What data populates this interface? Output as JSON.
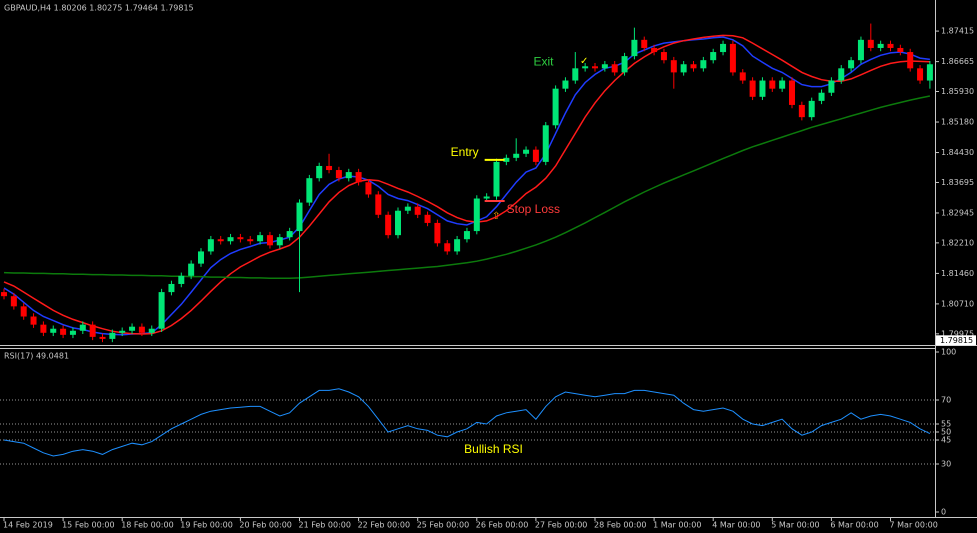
{
  "chart_data": [
    {
      "type": "candlestick",
      "title": "GBPAUD,H4  1.80206 1.80275 1.79464 1.79815",
      "categories": [
        "14 Feb 2019",
        null,
        null,
        null,
        null,
        null,
        "15 Feb 00:00",
        null,
        null,
        null,
        null,
        null,
        "18 Feb 00:00",
        null,
        null,
        null,
        null,
        null,
        "19 Feb 00:00",
        null,
        null,
        null,
        null,
        null,
        "20 Feb 00:00",
        null,
        null,
        null,
        null,
        null,
        "21 Feb 00:00",
        null,
        null,
        null,
        null,
        null,
        "22 Feb 00:00",
        null,
        null,
        null,
        null,
        null,
        "25 Feb 00:00",
        null,
        null,
        null,
        null,
        null,
        "26 Feb 00:00",
        null,
        null,
        null,
        null,
        null,
        "27 Feb 00:00",
        null,
        null,
        null,
        null,
        null,
        "28 Feb 00:00",
        null,
        null,
        null,
        null,
        null,
        "1 Mar 00:00",
        null,
        null,
        null,
        null,
        null,
        "4 Mar 00:00",
        null,
        null,
        null,
        null,
        null,
        "5 Mar 00:00",
        null,
        null,
        null,
        null,
        null,
        "6 Mar 00:00",
        null,
        null,
        null,
        null,
        null,
        "7 Mar 00:00",
        null,
        null,
        null,
        null
      ],
      "open": [
        1.81,
        1.809,
        1.8065,
        1.804,
        1.802,
        1.8,
        1.801,
        1.7995,
        1.8005,
        1.802,
        1.799,
        1.7985,
        1.8,
        1.8005,
        1.8015,
        1.8,
        1.801,
        1.81,
        1.812,
        1.814,
        1.817,
        1.82,
        1.823,
        1.8225,
        1.8235,
        1.823,
        1.8225,
        1.824,
        1.8215,
        1.8235,
        1.825,
        1.832,
        1.838,
        1.841,
        1.84,
        1.838,
        1.8395,
        1.837,
        1.834,
        1.829,
        1.824,
        1.83,
        1.831,
        1.829,
        1.827,
        1.822,
        1.82,
        1.823,
        1.825,
        1.833,
        1.8335,
        1.842,
        1.843,
        1.844,
        1.845,
        1.842,
        1.851,
        1.86,
        1.862,
        1.865,
        1.8655,
        1.865,
        1.866,
        1.864,
        1.868,
        1.872,
        1.87,
        1.869,
        1.867,
        1.864,
        1.866,
        1.865,
        1.867,
        1.869,
        1.871,
        1.864,
        1.862,
        1.858,
        1.862,
        1.86,
        1.862,
        1.856,
        1.853,
        1.857,
        1.859,
        1.862,
        1.865,
        1.867,
        1.872,
        1.87,
        1.871,
        1.87,
        1.869,
        1.865,
        1.862
      ],
      "high": [
        1.8108,
        1.8098,
        1.8073,
        1.8048,
        1.8028,
        1.8018,
        1.8018,
        1.8013,
        1.8028,
        1.8028,
        1.7998,
        1.8008,
        1.8013,
        1.8023,
        1.8023,
        1.8018,
        1.8108,
        1.8128,
        1.8148,
        1.8178,
        1.8208,
        1.8238,
        1.8238,
        1.8243,
        1.8243,
        1.8238,
        1.8248,
        1.8248,
        1.8243,
        1.8258,
        1.8328,
        1.8388,
        1.8418,
        1.844,
        1.8408,
        1.8403,
        1.8403,
        1.8378,
        1.8348,
        1.8298,
        1.8308,
        1.8318,
        1.8318,
        1.8298,
        1.8278,
        1.8228,
        1.8238,
        1.8258,
        1.8338,
        1.8343,
        1.8428,
        1.8438,
        1.8478,
        1.8458,
        1.8458,
        1.8518,
        1.8608,
        1.8628,
        1.869,
        1.8663,
        1.8663,
        1.8668,
        1.8668,
        1.8688,
        1.875,
        1.8728,
        1.8708,
        1.8698,
        1.8678,
        1.8668,
        1.8668,
        1.8678,
        1.8698,
        1.8718,
        1.8718,
        1.8648,
        1.8628,
        1.8628,
        1.8628,
        1.8628,
        1.8628,
        1.8568,
        1.8578,
        1.8598,
        1.8628,
        1.8658,
        1.8678,
        1.8728,
        1.876,
        1.8718,
        1.8718,
        1.8708,
        1.8698,
        1.8658,
        1.8668
      ],
      "low": [
        1.8082,
        1.8057,
        1.8032,
        1.8012,
        1.7992,
        1.7992,
        1.7987,
        1.7987,
        1.7997,
        1.7982,
        1.7977,
        1.7977,
        1.7992,
        1.7997,
        1.7992,
        1.7992,
        1.8002,
        1.8092,
        1.8112,
        1.8132,
        1.8162,
        1.8192,
        1.8217,
        1.8217,
        1.8222,
        1.8217,
        1.8217,
        1.8207,
        1.8207,
        1.8227,
        1.81,
        1.8312,
        1.8372,
        1.8392,
        1.8372,
        1.8372,
        1.8362,
        1.8332,
        1.8282,
        1.8232,
        1.8232,
        1.8292,
        1.8282,
        1.8262,
        1.8212,
        1.8192,
        1.8192,
        1.8222,
        1.8242,
        1.8322,
        1.8327,
        1.8412,
        1.8422,
        1.8432,
        1.8412,
        1.8412,
        1.8502,
        1.8592,
        1.8612,
        1.8642,
        1.8642,
        1.8642,
        1.8632,
        1.8632,
        1.8672,
        1.8692,
        1.8682,
        1.8662,
        1.86,
        1.8632,
        1.8642,
        1.8642,
        1.8662,
        1.8682,
        1.8632,
        1.8612,
        1.8572,
        1.8572,
        1.8592,
        1.8592,
        1.8552,
        1.8522,
        1.8522,
        1.8562,
        1.8582,
        1.8612,
        1.8642,
        1.8662,
        1.8692,
        1.8692,
        1.8692,
        1.8682,
        1.8642,
        1.8612,
        1.86
      ],
      "close": [
        1.809,
        1.8065,
        1.804,
        1.802,
        1.8,
        1.801,
        1.7995,
        1.8005,
        1.802,
        1.799,
        1.7985,
        1.8,
        1.8005,
        1.8015,
        1.8,
        1.801,
        1.81,
        1.812,
        1.814,
        1.817,
        1.82,
        1.823,
        1.8225,
        1.8235,
        1.823,
        1.8225,
        1.824,
        1.8215,
        1.8235,
        1.825,
        1.832,
        1.838,
        1.841,
        1.84,
        1.838,
        1.8395,
        1.837,
        1.834,
        1.829,
        1.824,
        1.83,
        1.831,
        1.829,
        1.827,
        1.822,
        1.82,
        1.823,
        1.825,
        1.833,
        1.8335,
        1.842,
        1.843,
        1.844,
        1.845,
        1.842,
        1.851,
        1.86,
        1.862,
        1.865,
        1.8655,
        1.865,
        1.866,
        1.864,
        1.868,
        1.872,
        1.87,
        1.869,
        1.867,
        1.864,
        1.866,
        1.865,
        1.867,
        1.869,
        1.871,
        1.864,
        1.862,
        1.858,
        1.862,
        1.86,
        1.862,
        1.856,
        1.853,
        1.857,
        1.859,
        1.862,
        1.865,
        1.867,
        1.872,
        1.87,
        1.871,
        1.87,
        1.869,
        1.865,
        1.862,
        1.866
      ],
      "up_color": "#00e676",
      "down_color": "#ff0000",
      "series": [
        {
          "color": "#1f3cff",
          "values": [
            1.811,
            1.8095,
            1.8075,
            1.8055,
            1.804,
            1.803,
            1.802,
            1.8012,
            1.8008,
            1.8002,
            1.7998,
            1.7996,
            1.7995,
            1.7997,
            1.7998,
            1.8,
            1.802,
            1.8045,
            1.807,
            1.81,
            1.813,
            1.816,
            1.818,
            1.8195,
            1.8205,
            1.8212,
            1.822,
            1.8222,
            1.8228,
            1.8235,
            1.826,
            1.83,
            1.834,
            1.8365,
            1.8378,
            1.8385,
            1.8383,
            1.8375,
            1.836,
            1.834,
            1.833,
            1.8325,
            1.8315,
            1.8305,
            1.829,
            1.8275,
            1.8268,
            1.8265,
            1.8275,
            1.8285,
            1.831,
            1.834,
            1.837,
            1.8395,
            1.8405,
            1.844,
            1.849,
            1.854,
            1.8585,
            1.8615,
            1.8635,
            1.865,
            1.8655,
            1.8665,
            1.8685,
            1.8695,
            1.8705,
            1.8712,
            1.8715,
            1.8718,
            1.872,
            1.8722,
            1.8725,
            1.8727,
            1.872,
            1.8705,
            1.868,
            1.8665,
            1.865,
            1.864,
            1.8625,
            1.861,
            1.8605,
            1.8605,
            1.8612,
            1.8625,
            1.864,
            1.866,
            1.8672,
            1.8682,
            1.8688,
            1.869,
            1.8685,
            1.8675,
            1.8672
          ]
        },
        {
          "color": "#ff1a1a",
          "values": [
            1.8125,
            1.8115,
            1.81,
            1.8085,
            1.807,
            1.8055,
            1.8043,
            1.8033,
            1.8025,
            1.8017,
            1.801,
            1.8004,
            1.8,
            1.7998,
            1.7997,
            1.7998,
            1.8005,
            1.8018,
            1.8035,
            1.8055,
            1.8078,
            1.8102,
            1.8125,
            1.8145,
            1.8162,
            1.8175,
            1.8188,
            1.8198,
            1.8206,
            1.8215,
            1.8235,
            1.8262,
            1.8292,
            1.8322,
            1.8345,
            1.8362,
            1.8372,
            1.8376,
            1.8374,
            1.8365,
            1.8355,
            1.8346,
            1.8335,
            1.8323,
            1.831,
            1.8295,
            1.8283,
            1.8275,
            1.8272,
            1.8275,
            1.8285,
            1.83,
            1.832,
            1.8342,
            1.8358,
            1.838,
            1.841,
            1.845,
            1.849,
            1.853,
            1.8565,
            1.8595,
            1.862,
            1.8642,
            1.8662,
            1.8678,
            1.8692,
            1.8703,
            1.8712,
            1.8718,
            1.8722,
            1.8726,
            1.8729,
            1.8731,
            1.873,
            1.8725,
            1.8712,
            1.8698,
            1.8684,
            1.867,
            1.8655,
            1.864,
            1.863,
            1.8622,
            1.8618,
            1.8618,
            1.8624,
            1.8634,
            1.8645,
            1.8655,
            1.8662,
            1.8666,
            1.8668,
            1.8667,
            1.8666
          ]
        },
        {
          "color": "#0c7a0c",
          "values": [
            1.8148,
            1.8147,
            1.8147,
            1.8146,
            1.8146,
            1.8145,
            1.8145,
            1.8144,
            1.8144,
            1.8143,
            1.8143,
            1.8142,
            1.8142,
            1.8141,
            1.8141,
            1.814,
            1.814,
            1.8139,
            1.8139,
            1.8138,
            1.8138,
            1.8137,
            1.8137,
            1.8136,
            1.8136,
            1.8135,
            1.8135,
            1.8134,
            1.8134,
            1.8134,
            1.8135,
            1.8137,
            1.8139,
            1.8141,
            1.8143,
            1.8145,
            1.8147,
            1.8149,
            1.8151,
            1.8153,
            1.8155,
            1.8157,
            1.8159,
            1.8161,
            1.8163,
            1.8166,
            1.8169,
            1.8172,
            1.8176,
            1.8181,
            1.8187,
            1.8193,
            1.82,
            1.8208,
            1.8216,
            1.8225,
            1.8235,
            1.8246,
            1.8258,
            1.827,
            1.8283,
            1.8296,
            1.8309,
            1.8322,
            1.8334,
            1.8346,
            1.8357,
            1.8368,
            1.8378,
            1.8388,
            1.8398,
            1.8408,
            1.8418,
            1.8428,
            1.8438,
            1.8448,
            1.8457,
            1.8465,
            1.8473,
            1.8481,
            1.8489,
            1.8497,
            1.8505,
            1.8512,
            1.8519,
            1.8526,
            1.8533,
            1.854,
            1.8547,
            1.8554,
            1.856,
            1.8566,
            1.8572,
            1.8577,
            1.8582
          ]
        }
      ],
      "ylim": [
        1.797,
        1.8813
      ],
      "yticks": [
        1.87415,
        1.86665,
        {
          "value": 1.8593,
          "label": "1.85930"
        },
        {
          "value": 1.8518,
          "label": "1.85180"
        },
        {
          "value": 1.8443,
          "label": "1.84430"
        },
        1.83695,
        1.82945,
        {
          "value": 1.8221,
          "label": "1.82210"
        },
        {
          "value": 1.8146,
          "label": "1.81460"
        },
        {
          "value": 1.8071,
          "label": "1.80710"
        },
        1.79975
      ],
      "last_price": 1.79815,
      "annotations": [
        {
          "text": "Entry",
          "index": 49,
          "price": 1.8425,
          "color": "#ffff00",
          "line": true
        },
        {
          "text": "Stop Loss",
          "index": 49,
          "price": 1.8324,
          "color": "#ff3b3b",
          "line": true
        },
        {
          "text": "Exit",
          "index": 57,
          "price": 1.8655,
          "color": "#2ecc40",
          "line": false
        }
      ]
    },
    {
      "type": "line",
      "title": "RSI(17) 49.0481",
      "color": "#1e90ff",
      "values": [
        45,
        44,
        43,
        40,
        37,
        35,
        36,
        38,
        39,
        38,
        36,
        39,
        41,
        43,
        42,
        44,
        48,
        52,
        55,
        58,
        61,
        63,
        64,
        65,
        65.5,
        66,
        66,
        63,
        60,
        62,
        68,
        72,
        76,
        76,
        77,
        75,
        72,
        66,
        58,
        50,
        52,
        54,
        52,
        51,
        48,
        47,
        50,
        52,
        56,
        55,
        60,
        62,
        63,
        64,
        58,
        66,
        72,
        75,
        74,
        73,
        72,
        73,
        74,
        74,
        76,
        76,
        75,
        74,
        73,
        68,
        64,
        63,
        64,
        65,
        63,
        58,
        55,
        54,
        56,
        58,
        52,
        48,
        50,
        54,
        56,
        58,
        62,
        58,
        60,
        61,
        60,
        58,
        56,
        52,
        49
      ],
      "ylim": [
        0,
        100
      ],
      "yticks": [
        0,
        30,
        45,
        50,
        55,
        70,
        100
      ],
      "grid": true,
      "annotations": [
        {
          "text": "Bullish RSI",
          "index": 50,
          "value": 35,
          "color": "#ffff00"
        }
      ]
    }
  ]
}
